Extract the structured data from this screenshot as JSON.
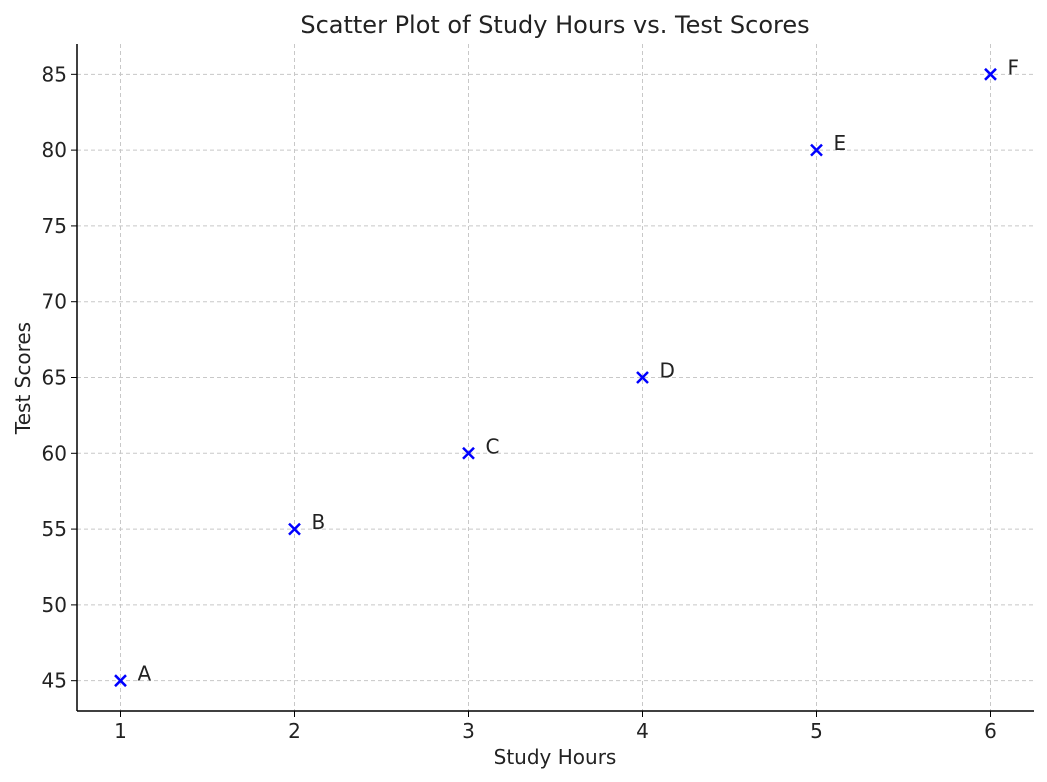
{
  "chart_data": {
    "type": "scatter",
    "title": "Scatter Plot of Study Hours vs. Test Scores",
    "xlabel": "Study Hours",
    "ylabel": "Test Scores",
    "xlim": [
      0.75,
      6.25
    ],
    "ylim": [
      43,
      87
    ],
    "xticks": [
      1,
      2,
      3,
      4,
      5,
      6
    ],
    "yticks": [
      45,
      50,
      55,
      60,
      65,
      70,
      75,
      80,
      85
    ],
    "grid": true,
    "marker": "x",
    "color": "#0000ff",
    "points": [
      {
        "label": "A",
        "x": 1,
        "y": 45
      },
      {
        "label": "B",
        "x": 2,
        "y": 55
      },
      {
        "label": "C",
        "x": 3,
        "y": 60
      },
      {
        "label": "D",
        "x": 4,
        "y": 65
      },
      {
        "label": "E",
        "x": 5,
        "y": 80
      },
      {
        "label": "F",
        "x": 6,
        "y": 85
      }
    ]
  }
}
